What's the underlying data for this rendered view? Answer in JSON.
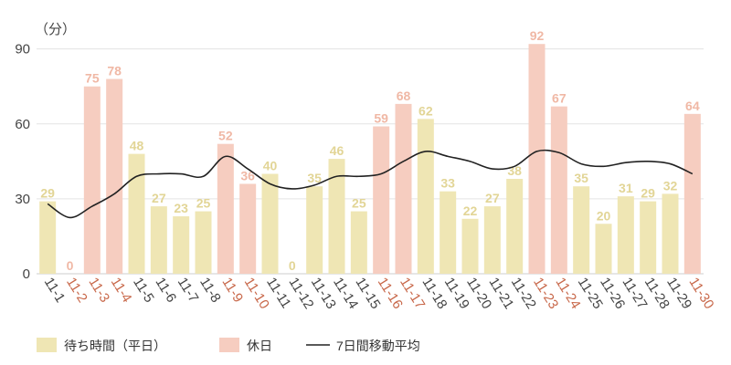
{
  "chart_data": {
    "type": "bar",
    "unit_label": "（分）",
    "categories": [
      "11-1",
      "11-2",
      "11-3",
      "11-4",
      "11-5",
      "11-6",
      "11-7",
      "11-8",
      "11-9",
      "11-10",
      "11-11",
      "11-12",
      "11-13",
      "11-14",
      "11-15",
      "11-16",
      "11-17",
      "11-18",
      "11-19",
      "11-20",
      "11-21",
      "11-22",
      "11-23",
      "11-24",
      "11-25",
      "11-26",
      "11-27",
      "11-28",
      "11-29",
      "11-30"
    ],
    "values": [
      29,
      0,
      75,
      78,
      48,
      27,
      23,
      25,
      52,
      36,
      40,
      0,
      35,
      46,
      25,
      59,
      68,
      62,
      33,
      22,
      27,
      38,
      92,
      67,
      35,
      20,
      31,
      29,
      32,
      64
    ],
    "holiday": [
      false,
      true,
      true,
      true,
      false,
      false,
      false,
      false,
      true,
      true,
      false,
      false,
      false,
      false,
      false,
      true,
      true,
      false,
      false,
      false,
      false,
      false,
      true,
      true,
      false,
      false,
      false,
      false,
      false,
      true
    ],
    "moving_average": [
      28,
      22.5,
      27,
      32,
      39,
      40,
      40,
      39,
      47,
      42,
      36,
      34,
      35.5,
      39,
      39,
      40,
      45,
      49,
      47,
      45,
      42,
      43,
      49,
      48.5,
      44,
      43,
      44.5,
      45,
      44,
      40
    ],
    "ylim": [
      0,
      95
    ],
    "yticks": [
      0,
      30,
      60,
      90
    ],
    "grid": true,
    "legend_position": "bottom-left",
    "legend": {
      "weekday": "待ち時間（平日）",
      "holiday": "休日",
      "average": "7日間移動平均"
    },
    "colors": {
      "weekday_bar": "#efe6b4",
      "weekday_label": "#e2d596",
      "holiday_bar": "#f6cdc0",
      "holiday_label": "#f0b8a5",
      "holiday_tick": "#c8684a",
      "weekday_tick": "#444444",
      "average_line": "#222222",
      "grid": "#e3e3e3"
    }
  }
}
